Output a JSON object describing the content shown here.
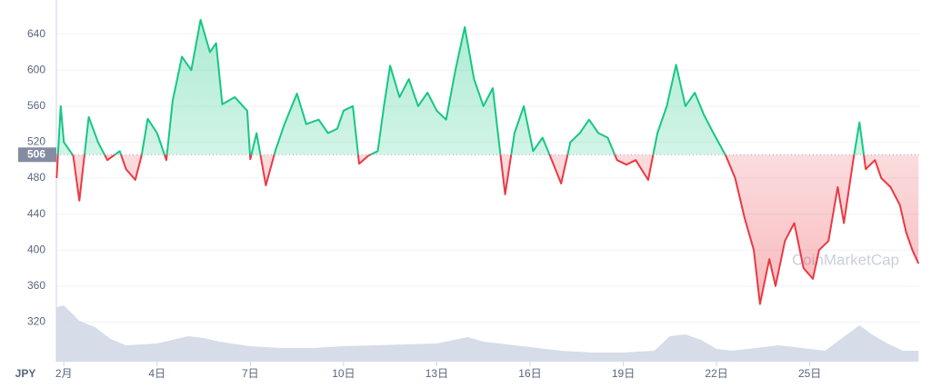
{
  "chart_data": {
    "type": "line",
    "currency": "JPY",
    "watermark": "CoinMarketCap",
    "baseline": 506,
    "colors": {
      "up": "#16c784",
      "down": "#ea3943",
      "volume": "#cfd6e4"
    },
    "x": [
      0.77,
      0.9,
      1.0,
      1.3,
      1.5,
      1.8,
      2.1,
      2.4,
      2.8,
      3.0,
      3.3,
      3.5,
      3.7,
      4.0,
      4.3,
      4.5,
      4.8,
      5.1,
      5.4,
      5.7,
      5.9,
      6.1,
      6.5,
      6.9,
      7.0,
      7.2,
      7.5,
      7.8,
      8.1,
      8.5,
      8.8,
      9.2,
      9.5,
      9.8,
      10.0,
      10.3,
      10.5,
      10.8,
      11.1,
      11.3,
      11.5,
      11.8,
      12.1,
      12.4,
      12.7,
      13.0,
      13.3,
      13.6,
      13.9,
      14.2,
      14.5,
      14.8,
      15.0,
      15.2,
      15.5,
      15.8,
      16.1,
      16.4,
      16.7,
      17.0,
      17.3,
      17.6,
      17.9,
      18.2,
      18.5,
      18.8,
      19.1,
      19.4,
      19.8,
      20.1,
      20.4,
      20.7,
      21.0,
      21.3,
      21.6,
      21.9,
      22.3,
      22.6,
      22.9,
      23.2,
      23.4,
      23.7,
      23.9,
      24.2,
      24.5,
      24.8,
      25.1,
      25.3,
      25.6,
      25.9,
      26.1,
      26.4,
      26.6,
      26.8,
      27.1,
      27.3,
      27.6,
      27.9,
      28.1,
      28.3,
      28.5
    ],
    "values": [
      480,
      560,
      520,
      505,
      455,
      548,
      520,
      500,
      510,
      490,
      478,
      505,
      546,
      530,
      500,
      566,
      615,
      600,
      656,
      620,
      630,
      562,
      570,
      555,
      501,
      530,
      472,
      510,
      540,
      574,
      540,
      545,
      530,
      535,
      555,
      560,
      496,
      505,
      510,
      560,
      605,
      570,
      590,
      560,
      575,
      555,
      545,
      600,
      648,
      590,
      560,
      580,
      520,
      462,
      530,
      560,
      510,
      525,
      500,
      474,
      520,
      530,
      545,
      530,
      525,
      500,
      495,
      500,
      478,
      530,
      560,
      606,
      560,
      575,
      550,
      530,
      505,
      480,
      436,
      400,
      340,
      390,
      360,
      410,
      430,
      380,
      368,
      400,
      410,
      470,
      430,
      500,
      542,
      490,
      500,
      480,
      470,
      450,
      420,
      400,
      385
    ],
    "volume": {
      "x": [
        0.77,
        1,
        1.5,
        2,
        2.5,
        3,
        4,
        5,
        5.5,
        6,
        7,
        8,
        9,
        10,
        11,
        12,
        13,
        14,
        14.5,
        15,
        16,
        17,
        18,
        19,
        20,
        20.5,
        21,
        21.5,
        22,
        22.5,
        23,
        24,
        25,
        25.5,
        26,
        26.6,
        27,
        27.5,
        28,
        28.5
      ],
      "values": [
        60,
        62,
        45,
        38,
        25,
        18,
        20,
        28,
        26,
        22,
        17,
        15,
        15,
        17,
        18,
        19,
        20,
        27,
        22,
        20,
        16,
        12,
        10,
        10,
        12,
        28,
        30,
        24,
        14,
        12,
        14,
        18,
        14,
        12,
        25,
        40,
        30,
        20,
        12,
        12
      ]
    },
    "xlim": [
      0.76,
      28.55
    ],
    "xticks": [
      {
        "value": 1,
        "label": "2月"
      },
      {
        "value": 4,
        "label": "4日"
      },
      {
        "value": 7,
        "label": "7日"
      },
      {
        "value": 10,
        "label": "10日"
      },
      {
        "value": 13,
        "label": "13日"
      },
      {
        "value": 16,
        "label": "16日"
      },
      {
        "value": 19,
        "label": "19日"
      },
      {
        "value": 22,
        "label": "22日"
      },
      {
        "value": 25,
        "label": "25日"
      }
    ],
    "ylim": [
      276,
      678
    ],
    "yticks": [
      320,
      360,
      400,
      440,
      480,
      520,
      560,
      600,
      640
    ],
    "grid": true
  }
}
